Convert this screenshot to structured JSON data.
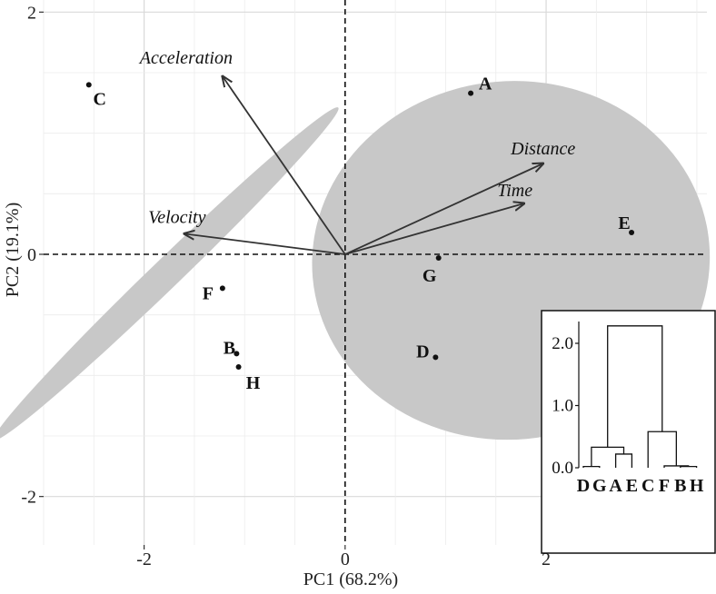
{
  "chart_data": {
    "type": "scatter",
    "title": "",
    "xlabel": "PC1 (68.2%)",
    "ylabel": "PC2 (19.1%)",
    "xlim": [
      -3.0,
      3.6
    ],
    "ylim": [
      -2.4,
      2.1
    ],
    "xticks": [
      -2,
      0,
      2
    ],
    "yticks": [
      -2,
      0,
      2
    ],
    "grid": true,
    "reference_lines": {
      "x": 0,
      "y": 0,
      "style": "dashed"
    },
    "points": [
      {
        "label": "A",
        "x": 1.25,
        "y": 1.33
      },
      {
        "label": "B",
        "x": -1.08,
        "y": -0.82
      },
      {
        "label": "C",
        "x": -2.55,
        "y": 1.4
      },
      {
        "label": "D",
        "x": 0.9,
        "y": -0.85
      },
      {
        "label": "E",
        "x": 2.85,
        "y": 0.18
      },
      {
        "label": "F",
        "x": -1.22,
        "y": -0.28
      },
      {
        "label": "G",
        "x": 0.93,
        "y": -0.03
      },
      {
        "label": "H",
        "x": -1.06,
        "y": -0.93
      }
    ],
    "loadings": [
      {
        "name": "Acceleration",
        "x": -1.22,
        "y": 1.47
      },
      {
        "name": "Distance",
        "x": 1.97,
        "y": 0.75
      },
      {
        "name": "Time",
        "x": 1.78,
        "y": 0.42
      },
      {
        "name": "Velocity",
        "x": -1.6,
        "y": 0.17
      }
    ],
    "ellipses": [
      {
        "group": [
          "A",
          "D",
          "E",
          "G"
        ],
        "cx": 1.65,
        "cy": -0.05,
        "rx": 1.98,
        "ry": 1.48,
        "angle_deg": -5,
        "color": "#c8c8c8"
      },
      {
        "group": [
          "B",
          "C",
          "F",
          "H"
        ],
        "cx": -1.78,
        "cy": -0.16,
        "rx": 2.38,
        "ry": 0.12,
        "angle_deg": -44,
        "color": "#c8c8c8"
      }
    ],
    "inset_dendrogram": {
      "leaves": [
        "D",
        "G",
        "A",
        "E",
        "C",
        "F",
        "B",
        "H"
      ],
      "yticks": [
        "0.0",
        "1.0",
        "2.0"
      ],
      "merges": [
        {
          "left": "D",
          "right": "G",
          "height": 0.02
        },
        {
          "left": "A",
          "right": "E",
          "height": 0.22
        },
        {
          "left": "DG",
          "right": "AE",
          "height": 0.33
        },
        {
          "left": "B",
          "right": "H",
          "height": 0.02
        },
        {
          "left": "F",
          "right": "BH",
          "height": 0.03
        },
        {
          "left": "C",
          "right": "FBH",
          "height": 0.58
        },
        {
          "left": "DGAE",
          "right": "CFBH",
          "height": 2.28
        }
      ]
    }
  }
}
